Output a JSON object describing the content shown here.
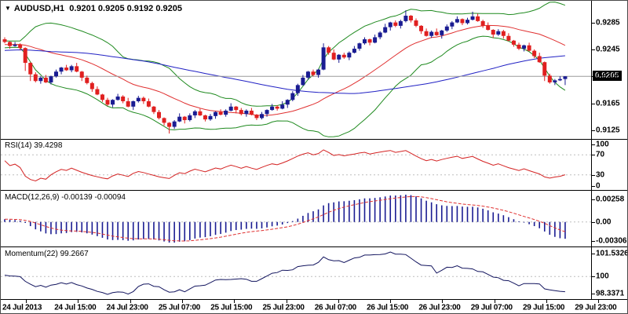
{
  "title": {
    "symbol": "AUDUSD,H1",
    "ohlc": "0.9201 0.9205 0.9192 0.9205"
  },
  "price_box": {
    "text": "0.9205"
  },
  "colors": {
    "background": "#ffffff",
    "candle_bull": "#1a1c92",
    "candle_bear": "#e02020",
    "bollinger": "#1f8a1f",
    "ma_fast": "#e03030",
    "ma_slow": "#2121c4",
    "rsi_line": "#d42222",
    "macd_hist": "#1a1c92",
    "macd_signal": "#e03030",
    "momentum_line": "#12145e",
    "level_dash": "#bdbdbd",
    "price_line": "#9a9a9a",
    "separator": "#000000",
    "axis_text": "#000000",
    "price_box_bg": "#000000",
    "price_box_fg": "#ffffff"
  },
  "panels": {
    "rsi": {
      "label": "RSI(14)",
      "value": "39.4298"
    },
    "macd": {
      "label": "MACD(12,26,9)",
      "values": "-0.00139 -0.00094"
    },
    "momentum": {
      "label": "Momentum(22)",
      "value": "99.2667"
    }
  },
  "chart_data": [
    {
      "type": "candlestick",
      "title": "AUDUSD,H1",
      "ohlc_display": {
        "open": 0.9201,
        "high": 0.9205,
        "low": 0.9192,
        "close": 0.9205
      },
      "last_price": 0.9205,
      "ylim": [
        0.9112,
        0.9316
      ],
      "y_ticks": [
        {
          "text": "0.9285",
          "value": 0.9285
        },
        {
          "text": "0.9245",
          "value": 0.9245
        },
        {
          "text": "0.9205",
          "value": 0.9205
        },
        {
          "text": "0.9165",
          "value": 0.9165
        },
        {
          "text": "0.9125",
          "value": 0.9125
        }
      ],
      "x_labels": [
        "24 Jul 2013",
        "24 Jul 15:00",
        "24 Jul 23:00",
        "25 Jul 07:00",
        "25 Jul 15:00",
        "25 Jul 23:00",
        "26 Jul 07:00",
        "26 Jul 15:00",
        "26 Jul 23:00",
        "29 Jul 07:00",
        "29 Jul 15:00",
        "29 Jul 23:00"
      ],
      "first_open": 0.926,
      "closes": [
        0.9256,
        0.925,
        0.9252,
        0.9247,
        0.9225,
        0.9208,
        0.9198,
        0.9203,
        0.9196,
        0.9205,
        0.9212,
        0.9218,
        0.9214,
        0.922,
        0.9212,
        0.9203,
        0.9195,
        0.9186,
        0.9178,
        0.917,
        0.9163,
        0.917,
        0.9175,
        0.9168,
        0.916,
        0.9168,
        0.9173,
        0.9168,
        0.916,
        0.9152,
        0.9143,
        0.9136,
        0.913,
        0.9138,
        0.9145,
        0.914,
        0.9147,
        0.9153,
        0.9147,
        0.9141,
        0.9146,
        0.9152,
        0.9148,
        0.9154,
        0.916,
        0.9155,
        0.9149,
        0.9154,
        0.9148,
        0.9143,
        0.9149,
        0.9155,
        0.916,
        0.9157,
        0.9163,
        0.917,
        0.918,
        0.9192,
        0.9203,
        0.9212,
        0.9207,
        0.9215,
        0.9248,
        0.924,
        0.923,
        0.9237,
        0.9233,
        0.924,
        0.9246,
        0.9254,
        0.926,
        0.9255,
        0.9263,
        0.927,
        0.9278,
        0.9285,
        0.928,
        0.9287,
        0.9295,
        0.9288,
        0.928,
        0.9272,
        0.9265,
        0.9271,
        0.9266,
        0.9273,
        0.9279,
        0.9285,
        0.929,
        0.9284,
        0.9289,
        0.9294,
        0.9287,
        0.928,
        0.9274,
        0.9267,
        0.9272,
        0.9265,
        0.9258,
        0.9252,
        0.9246,
        0.9251,
        0.9243,
        0.9235,
        0.9226,
        0.9206,
        0.9196,
        0.9199,
        0.9201,
        0.9205
      ],
      "wick_up": [
        3,
        1,
        4,
        2,
        5,
        1,
        3,
        2,
        4,
        1
      ],
      "wick_dn": [
        2,
        4,
        1,
        3,
        1,
        5,
        2,
        4,
        1,
        3
      ],
      "wick_overrides": {
        "4": [
          1,
          12
        ],
        "5": [
          1,
          10
        ],
        "32": [
          1,
          10
        ],
        "62": [
          6,
          1
        ],
        "78": [
          8,
          2
        ],
        "91": [
          7,
          1
        ],
        "105": [
          1,
          8
        ]
      },
      "padding": {
        "count": 70,
        "from": 0.9228,
        "to": 0.9256,
        "zigzag": 0.00012
      },
      "overlays": [
        {
          "name": "bollinger_upper",
          "period": 20,
          "dev": 2
        },
        {
          "name": "bollinger_lower",
          "period": 20,
          "dev": 2
        },
        {
          "name": "sma_fast",
          "period": 22
        },
        {
          "name": "sma_slow",
          "period": 65
        }
      ]
    },
    {
      "type": "line",
      "name": "RSI(14)",
      "period": 14,
      "current": 39.4298,
      "range": [
        0,
        100
      ],
      "levels": [
        70,
        30
      ],
      "y_ticks": [
        {
          "text": "100",
          "value": 100
        },
        {
          "text": "70",
          "value": 70
        },
        {
          "text": "30",
          "value": 30
        },
        {
          "text": "0",
          "value": 0
        }
      ]
    },
    {
      "type": "bar+line",
      "name": "MACD(12,26,9)",
      "periods": [
        12,
        26,
        9
      ],
      "current_macd": -0.00139,
      "current_signal": -0.00094,
      "y_ticks": [
        {
          "text": "0.00258",
          "pos": "top"
        },
        {
          "text": "0.00",
          "pos": "zero"
        },
        {
          "text": "-0.00306",
          "pos": "bottom"
        }
      ]
    },
    {
      "type": "line",
      "name": "Momentum(22)",
      "period": 22,
      "current": 99.2667,
      "level": 100,
      "y_ticks": [
        {
          "text": "101.5326",
          "pos": "top"
        },
        {
          "text": "100",
          "pos": "level"
        },
        {
          "text": "98.3371",
          "pos": "bottom"
        }
      ]
    }
  ]
}
